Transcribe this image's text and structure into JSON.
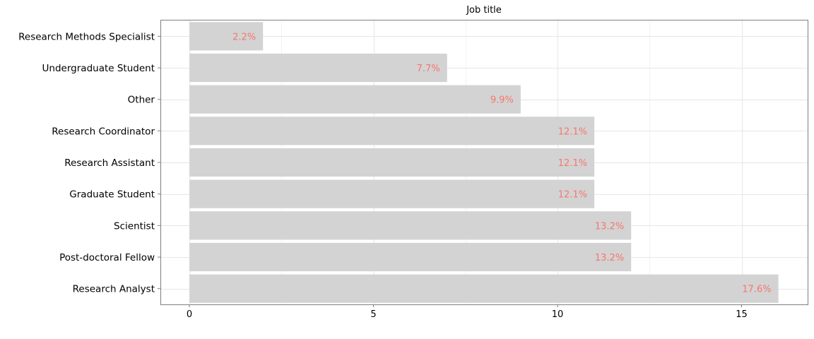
{
  "chart_data": {
    "type": "bar",
    "orientation": "horizontal",
    "title": "Job title",
    "xlabel": "",
    "ylabel": "",
    "xlim": [
      0,
      16.8
    ],
    "x_ticks": [
      0,
      5,
      10,
      15
    ],
    "grid": true,
    "categories": [
      "Research Methods Specialist",
      "Undergraduate Student",
      "Other",
      "Research Coordinator",
      "Research Assistant",
      "Graduate Student",
      "Scientist",
      "Post-doctoral Fellow",
      "Research Analyst"
    ],
    "values": [
      2,
      7,
      9,
      11,
      11,
      11,
      12,
      12,
      16
    ],
    "labels": [
      "2.2%",
      "7.7%",
      "9.9%",
      "12.1%",
      "12.1%",
      "12.1%",
      "13.2%",
      "13.2%",
      "17.6%"
    ],
    "bar_color": "#d3d3d3",
    "label_color": "#F8766D"
  }
}
